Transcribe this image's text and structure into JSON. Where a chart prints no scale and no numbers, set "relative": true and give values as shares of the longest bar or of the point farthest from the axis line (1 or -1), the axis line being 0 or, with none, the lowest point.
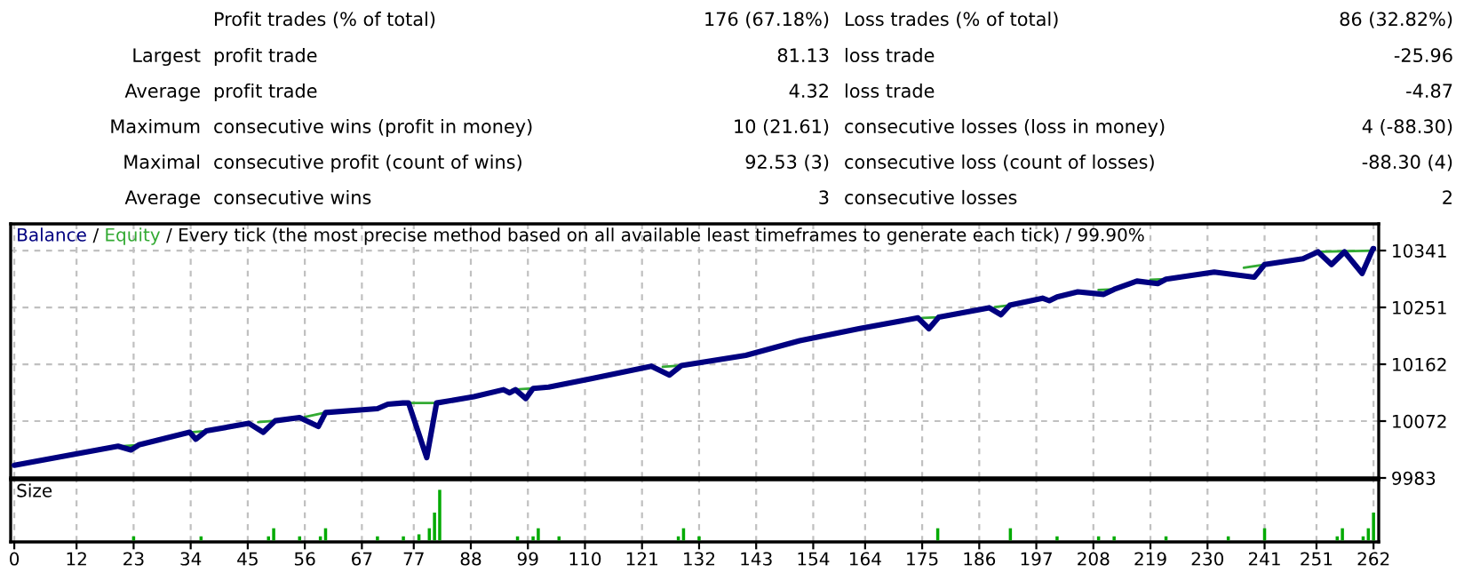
{
  "chart_data": [
    {
      "type": "other",
      "annotations": [
        "Profit trades (% of total)",
        "176 (67.18%)",
        "Loss trades (% of total)",
        "86 (32.82%)",
        "Largest",
        "profit trade",
        "81.13",
        "loss trade",
        "-25.96",
        "Average",
        "profit trade",
        "4.32",
        "loss trade",
        "-4.87",
        "Maximum",
        "consecutive wins (profit in money)",
        "10 (21.61)",
        "consecutive losses (loss in money)",
        "4 (-88.30)",
        "Maximal",
        "consecutive profit (count of wins)",
        "92.53 (3)",
        "consecutive loss (count of losses)",
        "-88.30 (4)",
        "Average",
        "consecutive wins",
        "3",
        "consecutive losses",
        "2"
      ]
    },
    {
      "type": "line",
      "annotations": [
        " / ",
        " / Every tick (the most precise method based on all available least timeframes to generate each tick) / 99.90%"
      ],
      "xlim": [
        -0.7,
        263
      ],
      "ylim": [
        9983,
        10383
      ],
      "xticks": [
        {
          "value": 0,
          "label": null
        },
        {
          "value": 12,
          "label": null
        },
        {
          "value": 23,
          "label": null
        },
        {
          "value": 34,
          "label": null
        },
        {
          "value": 45,
          "label": null
        },
        {
          "value": 56,
          "label": null
        },
        {
          "value": 67,
          "label": null
        },
        {
          "value": 77,
          "label": null
        },
        {
          "value": 88,
          "label": null
        },
        {
          "value": 99,
          "label": null
        },
        {
          "value": 110,
          "label": null
        },
        {
          "value": 121,
          "label": null
        },
        {
          "value": 132,
          "label": null
        },
        {
          "value": 143,
          "label": null
        },
        {
          "value": 154,
          "label": null
        },
        {
          "value": 164,
          "label": null
        },
        {
          "value": 175,
          "label": null
        },
        {
          "value": 186,
          "label": null
        },
        {
          "value": 197,
          "label": null
        },
        {
          "value": 208,
          "label": null
        },
        {
          "value": 219,
          "label": null
        },
        {
          "value": 230,
          "label": null
        },
        {
          "value": 241,
          "label": null
        },
        {
          "value": 251,
          "label": null
        },
        {
          "value": 262,
          "label": null
        }
      ],
      "yticks": [
        9983,
        {
          "value": 10072.5,
          "label": "10072"
        },
        10162,
        {
          "value": 10251.5,
          "label": "10251"
        },
        10341
      ],
      "grid": true,
      "tick_labels": "y",
      "legend": "top left",
      "series": [
        {
          "name": "Balance",
          "color": "#000080",
          "x": [
            0,
            20,
            22.5,
            24,
            33.8,
            35,
            37,
            45.2,
            48,
            50.3,
            55,
            58.6,
            60,
            70,
            72,
            74.9,
            76,
            79.5,
            81.4,
            88.6,
            94.3,
            95.5,
            96.6,
            98.6,
            100,
            103,
            111,
            122.8,
            126.3,
            128.6,
            141,
            151.4,
            162.8,
            174.2,
            176.3,
            178.2,
            187.9,
            190.2,
            191.9,
            198.2,
            199.5,
            201,
            205,
            210,
            212,
            216.4,
            220.4,
            222,
            231.3,
            239,
            241,
            248.4,
            251.3,
            253.9,
            256.4,
            259.8,
            261.9,
            262
          ],
          "values": [
            10003,
            10033,
            10027,
            10035,
            10055,
            10044,
            10057,
            10069,
            10055,
            10073,
            10078,
            10064,
            10086,
            10092,
            10099,
            10101,
            10101,
            10015,
            10101,
            10111,
            10122,
            10117,
            10122,
            10108,
            10124,
            10126,
            10139,
            10159,
            10145,
            10160,
            10176,
            10199,
            10218,
            10235,
            10218,
            10236,
            10251,
            10240,
            10255,
            10266,
            10262,
            10268,
            10276,
            10272,
            10280,
            10293,
            10289,
            10296,
            10307,
            10299,
            10319,
            10328,
            10339,
            10319,
            10339,
            10305,
            10344,
            10344
          ]
        },
        {
          "name": "Equity",
          "color": "#33aa33",
          "x": [
            21,
            24,
            24.5,
            34,
            37,
            37.5,
            47,
            50.3,
            50.8,
            56,
            60,
            60.5,
            76,
            81.4,
            81.9,
            96,
            100,
            100.5,
            125,
            128.6,
            129.1,
            175,
            178.2,
            178.7,
            189,
            191.9,
            192.4,
            209,
            212,
            212.5,
            219,
            222,
            222.5,
            237,
            241,
            241.5,
            251.3,
            262
          ],
          "values": [
            10033,
            10035,
            null,
            10055,
            10057,
            null,
            10071,
            10073,
            null,
            10079,
            10086,
            null,
            10101,
            10101,
            null,
            10122,
            10124,
            null,
            10158,
            10160,
            null,
            10235,
            10236,
            null,
            10252,
            10255,
            null,
            10279,
            10280,
            null,
            10295,
            10296,
            null,
            10314,
            10319,
            null,
            10339,
            10341
          ]
        }
      ]
    },
    {
      "type": "bar",
      "relative": true,
      "ylabel": "Size",
      "color": "#00aa00",
      "xlim": [
        -0.7,
        263
      ],
      "xticks": [
        0,
        12,
        23,
        34,
        45,
        56,
        67,
        77,
        88,
        99,
        110,
        121,
        132,
        143,
        154,
        164,
        175,
        186,
        197,
        208,
        219,
        230,
        241,
        251,
        262
      ],
      "grid": "x",
      "tick_labels": "x",
      "x": [
        23,
        36,
        49,
        50,
        55,
        59,
        60,
        70,
        75,
        78,
        80,
        81,
        82,
        97,
        100,
        101,
        105,
        128,
        129,
        132,
        178,
        192,
        201,
        209,
        212,
        222,
        234,
        241,
        255,
        256,
        260,
        261,
        262
      ],
      "values": [
        0.08,
        0.08,
        0.08,
        0.24,
        0.08,
        0.08,
        0.24,
        0.08,
        0.08,
        0.12,
        0.24,
        0.55,
        1,
        0.08,
        0.08,
        0.24,
        0.08,
        0.08,
        0.24,
        0.08,
        0.24,
        0.24,
        0.08,
        0.08,
        0.08,
        0.08,
        0.08,
        0.24,
        0.08,
        0.24,
        0.08,
        0.24,
        0.55
      ]
    }
  ]
}
